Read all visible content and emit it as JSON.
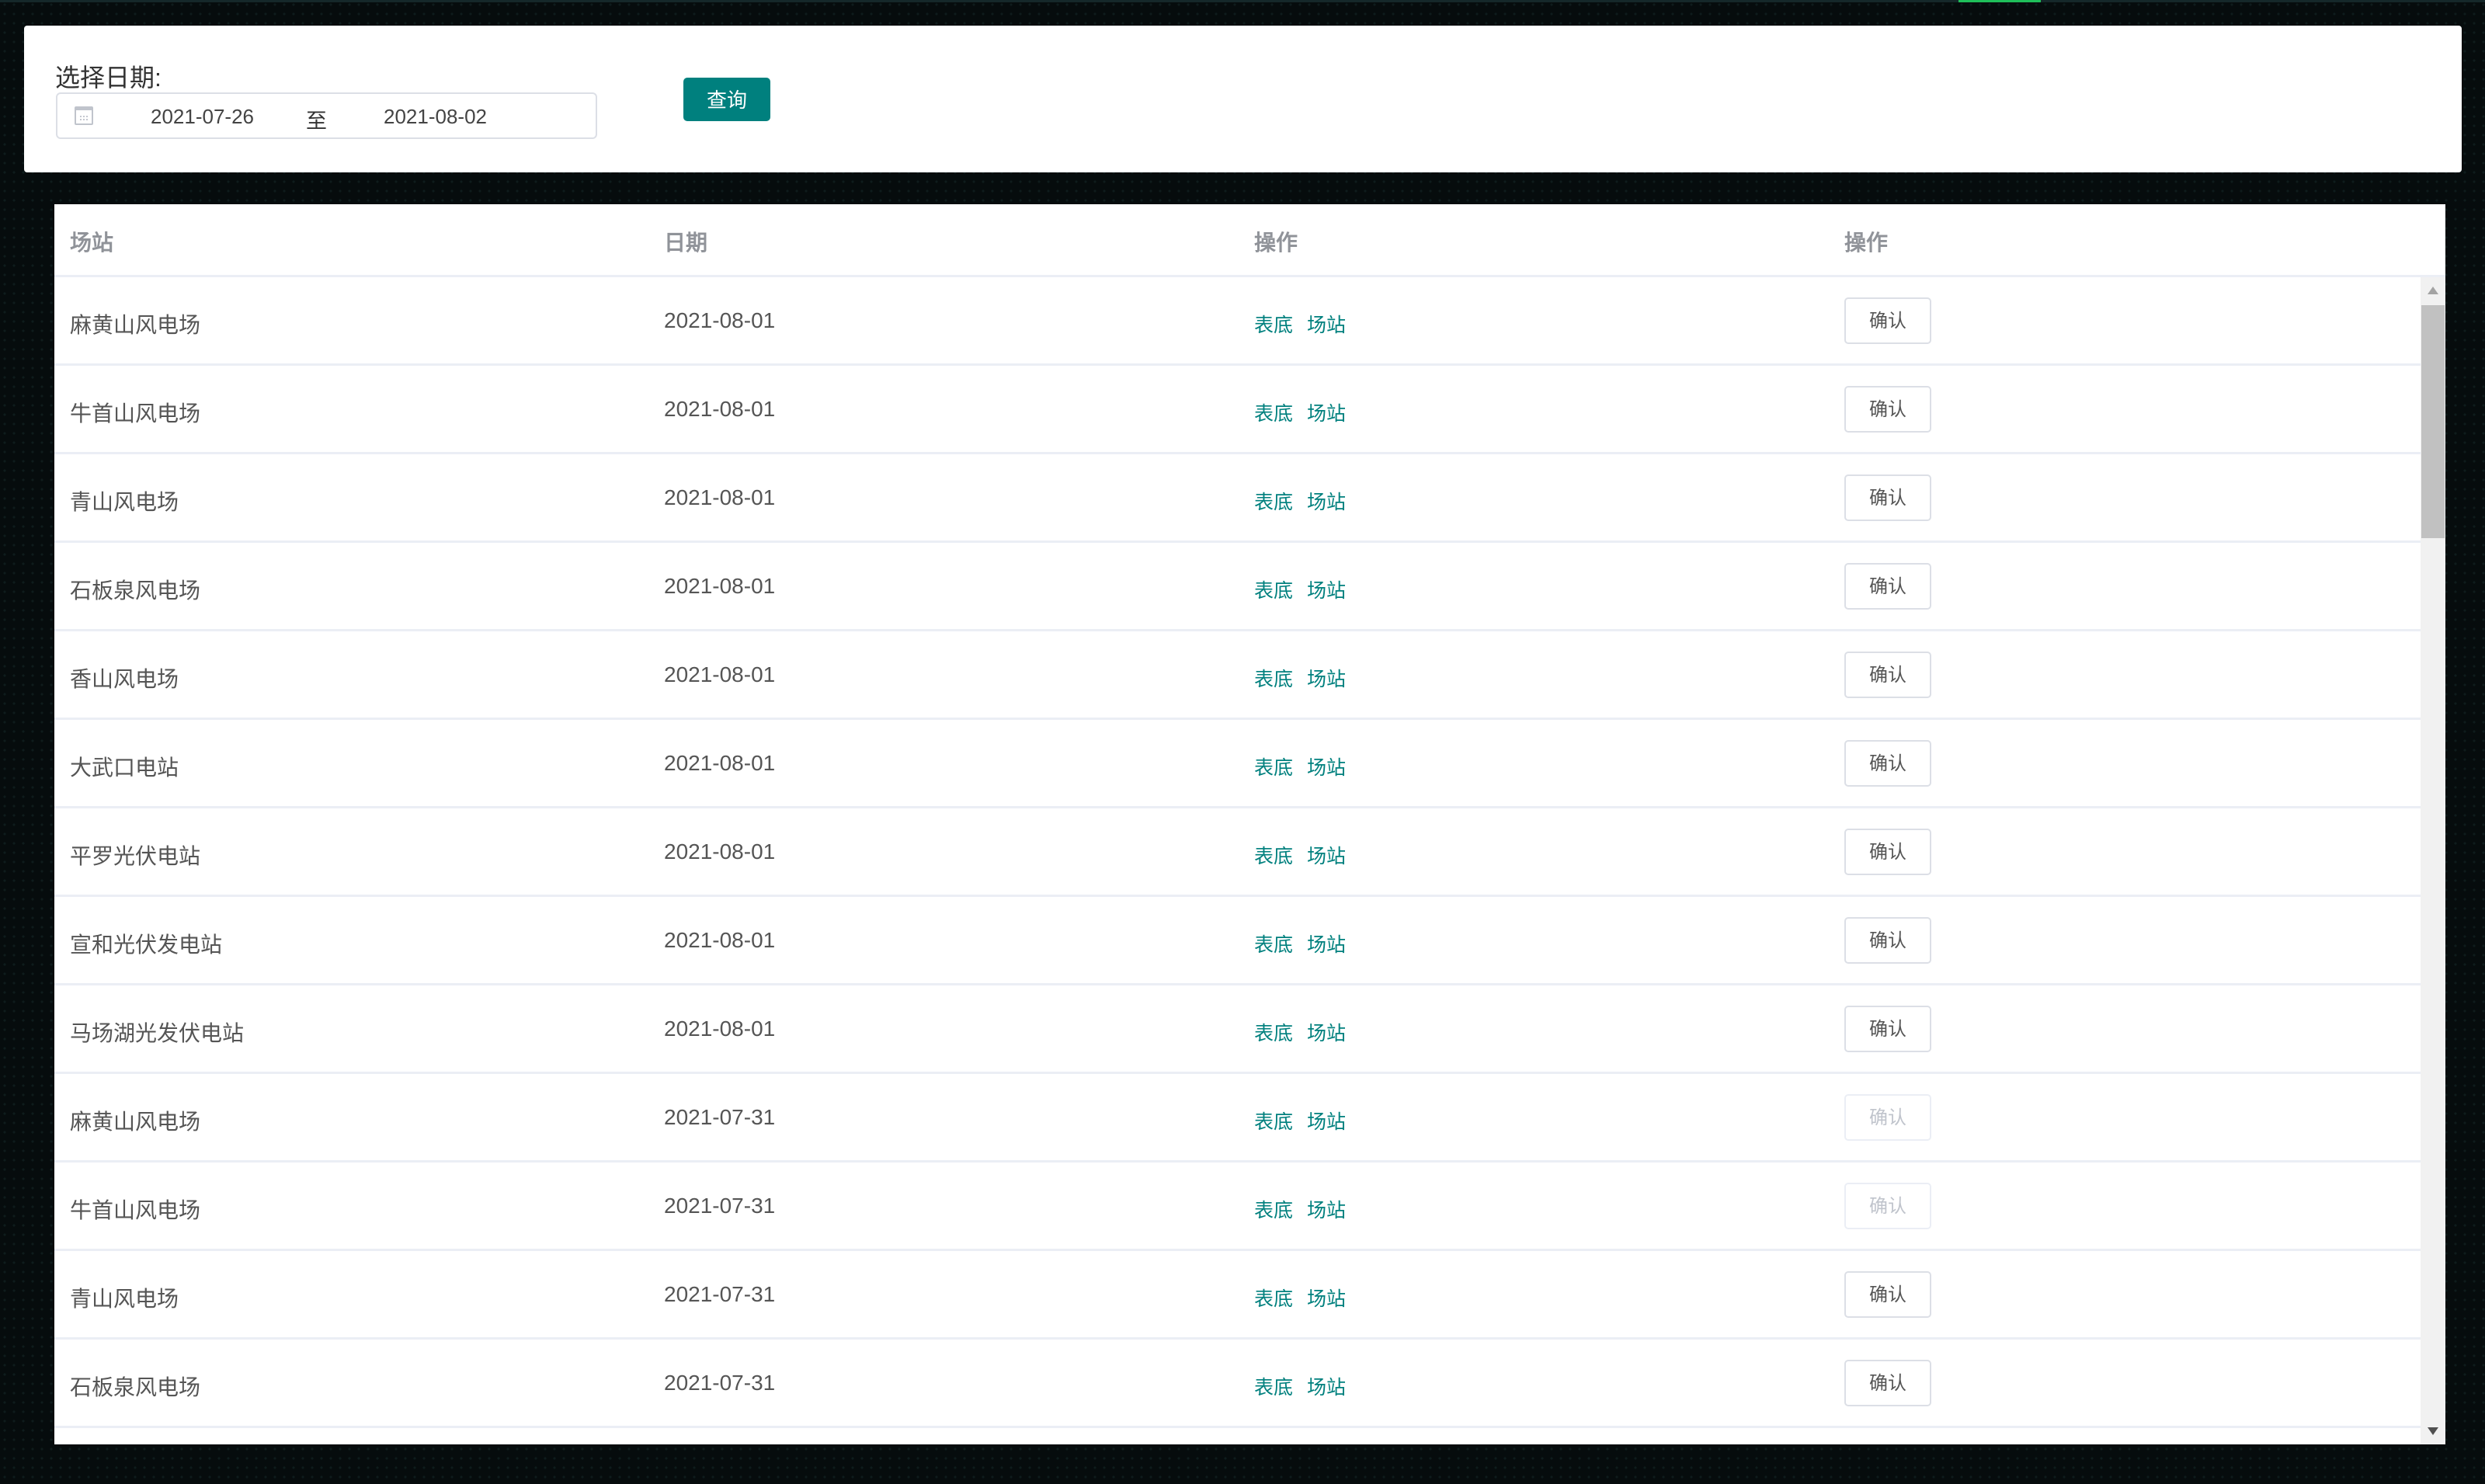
{
  "filter": {
    "label": "选择日期:",
    "start_date": "2021-07-26",
    "separator": "至",
    "end_date": "2021-08-02",
    "query_label": "查询"
  },
  "table": {
    "columns": [
      "场站",
      "日期",
      "操作",
      "操作"
    ],
    "link_labels": [
      "表底",
      "场站"
    ],
    "rows": [
      {
        "station": "麻黄山风电场",
        "date": "2021-08-01",
        "confirm": "确认",
        "confirm_enabled": true
      },
      {
        "station": "牛首山风电场",
        "date": "2021-08-01",
        "confirm": "确认",
        "confirm_enabled": true
      },
      {
        "station": "青山风电场",
        "date": "2021-08-01",
        "confirm": "确认",
        "confirm_enabled": true
      },
      {
        "station": "石板泉风电场",
        "date": "2021-08-01",
        "confirm": "确认",
        "confirm_enabled": true
      },
      {
        "station": "香山风电场",
        "date": "2021-08-01",
        "confirm": "确认",
        "confirm_enabled": true
      },
      {
        "station": "大武口电站",
        "date": "2021-08-01",
        "confirm": "确认",
        "confirm_enabled": true
      },
      {
        "station": "平罗光伏电站",
        "date": "2021-08-01",
        "confirm": "确认",
        "confirm_enabled": true
      },
      {
        "station": "宣和光伏发电站",
        "date": "2021-08-01",
        "confirm": "确认",
        "confirm_enabled": true
      },
      {
        "station": "马场湖光发伏电站",
        "date": "2021-08-01",
        "confirm": "确认",
        "confirm_enabled": true
      },
      {
        "station": "麻黄山风电场",
        "date": "2021-07-31",
        "confirm": "确认",
        "confirm_enabled": false
      },
      {
        "station": "牛首山风电场",
        "date": "2021-07-31",
        "confirm": "确认",
        "confirm_enabled": false
      },
      {
        "station": "青山风电场",
        "date": "2021-07-31",
        "confirm": "确认",
        "confirm_enabled": true
      },
      {
        "station": "石板泉风电场",
        "date": "2021-07-31",
        "confirm": "确认",
        "confirm_enabled": true
      }
    ]
  },
  "colors": {
    "accent": "#00807e",
    "background": "#060c0d"
  }
}
